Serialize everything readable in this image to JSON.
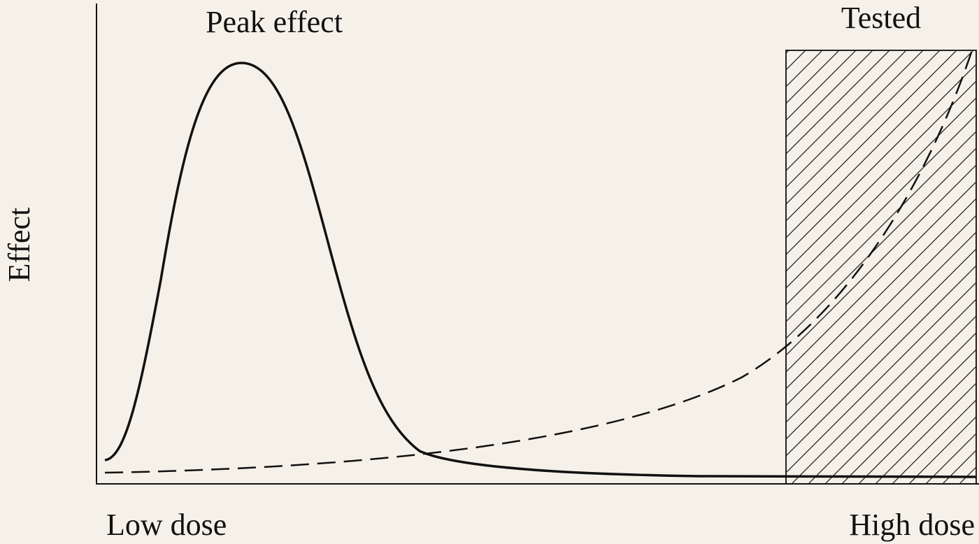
{
  "labels": {
    "peak": "Peak effect",
    "tested": "Tested",
    "y_axis": "Effect",
    "x_low": "Low dose",
    "x_high": "High dose"
  }
}
